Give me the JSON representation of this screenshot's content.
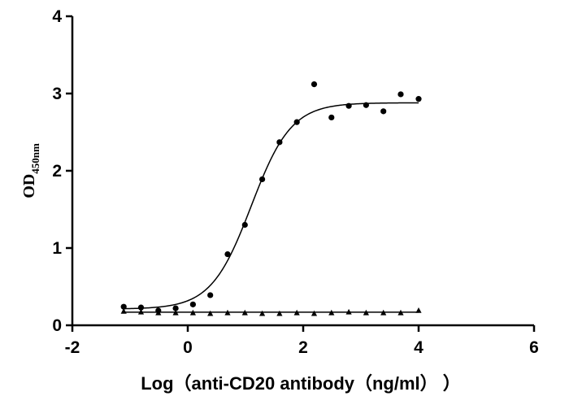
{
  "chart_data": {
    "type": "scatter",
    "xlabel": "Log（anti-CD20 antibody（ng/ml） ）",
    "ylabel_main": "OD",
    "ylabel_sub": "450nm",
    "xlim": [
      -2,
      6
    ],
    "ylim": [
      0,
      4
    ],
    "xticks": [
      -2,
      0,
      2,
      4,
      6
    ],
    "yticks": [
      0,
      1,
      2,
      3,
      4
    ],
    "grid": false,
    "series": [
      {
        "marker": "circle",
        "x": [
          -1.11,
          -0.81,
          -0.51,
          -0.21,
          0.09,
          0.39,
          0.69,
          0.99,
          1.29,
          1.59,
          1.89,
          2.19,
          2.49,
          2.79,
          3.09,
          3.39,
          3.69,
          4.0
        ],
        "y": [
          0.24,
          0.23,
          0.19,
          0.22,
          0.27,
          0.39,
          0.92,
          1.3,
          1.89,
          2.37,
          2.63,
          3.12,
          2.69,
          2.84,
          2.85,
          2.77,
          2.99,
          2.93
        ],
        "fit": {
          "bottom": 0.21,
          "top": 2.88,
          "logEC50": 1.1,
          "hill": 1.25
        }
      },
      {
        "marker": "triangle",
        "x": [
          -1.11,
          -0.81,
          -0.51,
          -0.21,
          0.09,
          0.39,
          0.69,
          0.99,
          1.29,
          1.59,
          1.89,
          2.19,
          2.49,
          2.79,
          3.09,
          3.39,
          3.69,
          4.0
        ],
        "y": [
          0.18,
          0.17,
          0.16,
          0.16,
          0.16,
          0.15,
          0.16,
          0.16,
          0.15,
          0.15,
          0.16,
          0.15,
          0.16,
          0.17,
          0.16,
          0.16,
          0.16,
          0.19
        ],
        "fit": {
          "line": [
            0.17,
            0.17
          ]
        }
      }
    ]
  }
}
